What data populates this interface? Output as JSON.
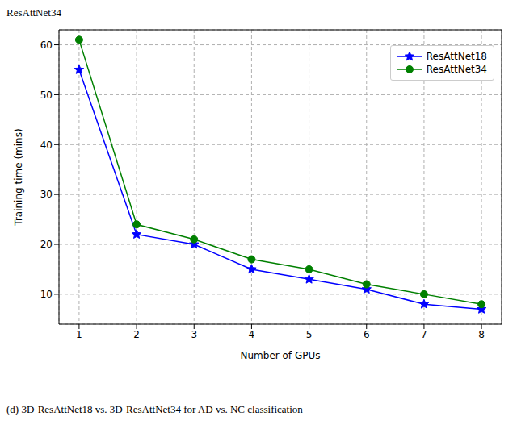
{
  "chart_data": {
    "type": "line",
    "x_label": "Number of GPUs",
    "y_label": "Training time (mins)",
    "annotations": [
      "ResAttNet34",
      "(d) 3D-ResAttNet18 vs. 3D-ResAttNet34 for AD vs. NC classification"
    ],
    "x": [
      1,
      2,
      3,
      4,
      5,
      6,
      7,
      8
    ],
    "series": [
      {
        "name": "ResAttNet18",
        "color": "#0000ff",
        "marker": "star",
        "values": [
          55,
          22,
          20,
          15,
          13,
          11,
          8,
          7
        ]
      },
      {
        "name": "ResAttNet34",
        "color": "#008000",
        "marker": "circle",
        "values": [
          61,
          24,
          21,
          17,
          15,
          12,
          10,
          8
        ]
      }
    ],
    "xlim": [
      0.65,
      8.35
    ],
    "ylim": [
      4,
      63
    ],
    "xticks": [
      1,
      2,
      3,
      4,
      5,
      6,
      7,
      8
    ],
    "yticks": [
      10,
      20,
      30,
      40,
      50,
      60
    ],
    "grid": true,
    "legend": "upper right"
  }
}
